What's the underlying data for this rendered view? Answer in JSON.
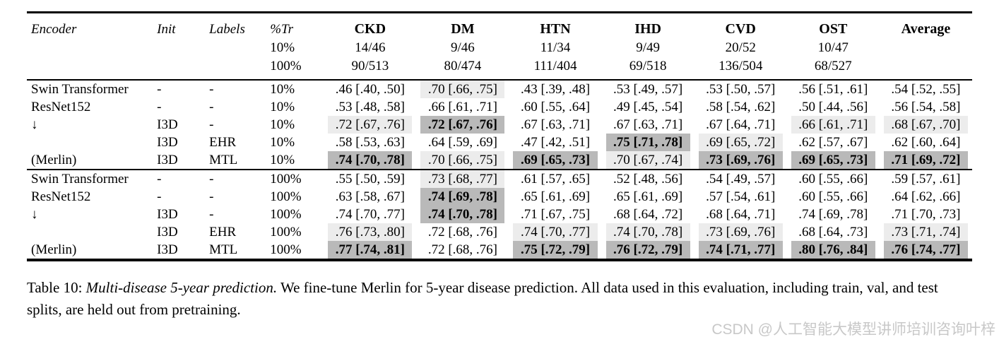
{
  "colors": {
    "highlight_light": "#ececec",
    "highlight_dark": "#b9b9b9",
    "rule": "#000000",
    "watermark": "#c8c8c8"
  },
  "caption": {
    "prefix": "Table 10: ",
    "italic": "Multi-disease 5-year prediction.",
    "rest": " We fine-tune Merlin for 5-year disease prediction. All data used in this evaluation, including train, val, and test splits, are held out from pretraining."
  },
  "watermark": "CSDN @人工智能大模型讲师培训咨询叶梓",
  "table": {
    "header": {
      "encoder": "Encoder",
      "init": "Init",
      "labels": "Labels",
      "ptr": "%Tr",
      "ptr_rows": [
        "10%",
        "100%"
      ],
      "value_cols": [
        {
          "name": "CKD",
          "n10": "14/46",
          "n100": "90/513"
        },
        {
          "name": "DM",
          "n10": "9/46",
          "n100": "80/474"
        },
        {
          "name": "HTN",
          "n10": "11/34",
          "n100": "111/404"
        },
        {
          "name": "IHD",
          "n10": "9/49",
          "n100": "69/518"
        },
        {
          "name": "CVD",
          "n10": "20/52",
          "n100": "136/504"
        },
        {
          "name": "OST",
          "n10": "10/47",
          "n100": "68/527"
        },
        {
          "name": "Average",
          "n10": "",
          "n100": ""
        }
      ]
    },
    "blocks": [
      {
        "rows": [
          {
            "encoder": "Swin Transformer",
            "init": "-",
            "labels": "-",
            "ptr": "10%",
            "cells": [
              {
                "t": ".46 [.40, .50]",
                "hl": "",
                "bold": false
              },
              {
                "t": ".70 [.66, .75]",
                "hl": "light",
                "bold": false
              },
              {
                "t": ".43 [.39, .48]",
                "hl": "",
                "bold": false
              },
              {
                "t": ".53 [.49, .57]",
                "hl": "",
                "bold": false
              },
              {
                "t": ".53 [.50, .57]",
                "hl": "",
                "bold": false
              },
              {
                "t": ".56 [.51, .61]",
                "hl": "",
                "bold": false
              },
              {
                "t": ".54 [.52, .55]",
                "hl": "",
                "bold": false
              }
            ]
          },
          {
            "encoder": "ResNet152",
            "init": "-",
            "labels": "-",
            "ptr": "10%",
            "cells": [
              {
                "t": ".53 [.48, .58]",
                "hl": "",
                "bold": false
              },
              {
                "t": ".66 [.61, .71]",
                "hl": "",
                "bold": false
              },
              {
                "t": ".60 [.55, .64]",
                "hl": "",
                "bold": false
              },
              {
                "t": ".49 [.45, .54]",
                "hl": "",
                "bold": false
              },
              {
                "t": ".58 [.54, .62]",
                "hl": "",
                "bold": false
              },
              {
                "t": ".50 [.44, .56]",
                "hl": "",
                "bold": false
              },
              {
                "t": ".56 [.54, .58]",
                "hl": "",
                "bold": false
              }
            ]
          },
          {
            "encoder": "↓",
            "init": "I3D",
            "labels": "-",
            "ptr": "10%",
            "cells": [
              {
                "t": ".72 [.67, .76]",
                "hl": "light",
                "bold": false
              },
              {
                "t": ".72 [.67, .76]",
                "hl": "dark",
                "bold": true
              },
              {
                "t": ".67 [.63, .71]",
                "hl": "",
                "bold": false
              },
              {
                "t": ".67 [.63, .71]",
                "hl": "",
                "bold": false
              },
              {
                "t": ".67 [.64, .71]",
                "hl": "",
                "bold": false
              },
              {
                "t": ".66 [.61, .71]",
                "hl": "light",
                "bold": false
              },
              {
                "t": ".68 [.67, .70]",
                "hl": "light",
                "bold": false
              }
            ]
          },
          {
            "encoder": "",
            "init": "I3D",
            "labels": "EHR",
            "ptr": "10%",
            "cells": [
              {
                "t": ".58 [.53, .63]",
                "hl": "",
                "bold": false
              },
              {
                "t": ".64 [.59, .69]",
                "hl": "",
                "bold": false
              },
              {
                "t": ".47 [.42, .51]",
                "hl": "",
                "bold": false
              },
              {
                "t": ".75 [.71, .78]",
                "hl": "dark",
                "bold": true
              },
              {
                "t": ".69 [.65, .72]",
                "hl": "light",
                "bold": false
              },
              {
                "t": ".62 [.57, .67]",
                "hl": "",
                "bold": false
              },
              {
                "t": ".62 [.60, .64]",
                "hl": "",
                "bold": false
              }
            ]
          },
          {
            "encoder": "(Merlin)",
            "init": "I3D",
            "labels": "MTL",
            "ptr": "10%",
            "cells": [
              {
                "t": ".74 [.70, .78]",
                "hl": "dark",
                "bold": true
              },
              {
                "t": ".70 [.66, .75]",
                "hl": "light",
                "bold": false
              },
              {
                "t": ".69 [.65, .73]",
                "hl": "dark",
                "bold": true
              },
              {
                "t": ".70 [.67, .74]",
                "hl": "light",
                "bold": false
              },
              {
                "t": ".73 [.69, .76]",
                "hl": "dark",
                "bold": true
              },
              {
                "t": ".69 [.65, .73]",
                "hl": "dark",
                "bold": true
              },
              {
                "t": ".71 [.69, .72]",
                "hl": "dark",
                "bold": true
              }
            ]
          }
        ]
      },
      {
        "rows": [
          {
            "encoder": "Swin Transformer",
            "init": "-",
            "labels": "-",
            "ptr": "100%",
            "cells": [
              {
                "t": ".55 [.50, .59]",
                "hl": "",
                "bold": false
              },
              {
                "t": ".73 [.68, .77]",
                "hl": "light",
                "bold": false
              },
              {
                "t": ".61 [.57, .65]",
                "hl": "",
                "bold": false
              },
              {
                "t": ".52 [.48, .56]",
                "hl": "",
                "bold": false
              },
              {
                "t": ".54 [.49, .57]",
                "hl": "",
                "bold": false
              },
              {
                "t": ".60 [.55, .66]",
                "hl": "",
                "bold": false
              },
              {
                "t": ".59 [.57, .61]",
                "hl": "",
                "bold": false
              }
            ]
          },
          {
            "encoder": "ResNet152",
            "init": "-",
            "labels": "-",
            "ptr": "100%",
            "cells": [
              {
                "t": ".63 [.58, .67]",
                "hl": "",
                "bold": false
              },
              {
                "t": ".74 [.69, .78]",
                "hl": "dark",
                "bold": true
              },
              {
                "t": ".65 [.61, .69]",
                "hl": "",
                "bold": false
              },
              {
                "t": ".65 [.61, .69]",
                "hl": "",
                "bold": false
              },
              {
                "t": ".57 [.54, .61]",
                "hl": "",
                "bold": false
              },
              {
                "t": ".60 [.55, .66]",
                "hl": "",
                "bold": false
              },
              {
                "t": ".64 [.62, .66]",
                "hl": "",
                "bold": false
              }
            ]
          },
          {
            "encoder": "↓",
            "init": "I3D",
            "labels": "-",
            "ptr": "100%",
            "cells": [
              {
                "t": ".74 [.70, .77]",
                "hl": "",
                "bold": false
              },
              {
                "t": ".74 [.70, .78]",
                "hl": "dark",
                "bold": true
              },
              {
                "t": ".71 [.67, .75]",
                "hl": "",
                "bold": false
              },
              {
                "t": ".68 [.64, .72]",
                "hl": "",
                "bold": false
              },
              {
                "t": ".68 [.64, .71]",
                "hl": "",
                "bold": false
              },
              {
                "t": ".74 [.69, .78]",
                "hl": "",
                "bold": false
              },
              {
                "t": ".71 [.70, .73]",
                "hl": "",
                "bold": false
              }
            ]
          },
          {
            "encoder": "",
            "init": "I3D",
            "labels": "EHR",
            "ptr": "100%",
            "cells": [
              {
                "t": ".76 [.73, .80]",
                "hl": "light",
                "bold": false
              },
              {
                "t": ".72 [.68, .76]",
                "hl": "",
                "bold": false
              },
              {
                "t": ".74 [.70, .77]",
                "hl": "light",
                "bold": false
              },
              {
                "t": ".74 [.70, .78]",
                "hl": "light",
                "bold": false
              },
              {
                "t": ".73 [.69, .76]",
                "hl": "light",
                "bold": false
              },
              {
                "t": ".68 [.64, .73]",
                "hl": "",
                "bold": false
              },
              {
                "t": ".73 [.71, .74]",
                "hl": "light",
                "bold": false
              }
            ]
          },
          {
            "encoder": "(Merlin)",
            "init": "I3D",
            "labels": "MTL",
            "ptr": "100%",
            "cells": [
              {
                "t": ".77 [.74, .81]",
                "hl": "dark",
                "bold": true
              },
              {
                "t": ".72 [.68, .76]",
                "hl": "",
                "bold": false
              },
              {
                "t": ".75 [.72, .79]",
                "hl": "dark",
                "bold": true
              },
              {
                "t": ".76 [.72, .79]",
                "hl": "dark",
                "bold": true
              },
              {
                "t": ".74 [.71, .77]",
                "hl": "dark",
                "bold": true
              },
              {
                "t": ".80 [.76, .84]",
                "hl": "dark",
                "bold": true
              },
              {
                "t": ".76 [.74, .77]",
                "hl": "dark",
                "bold": true
              }
            ]
          }
        ]
      }
    ]
  }
}
